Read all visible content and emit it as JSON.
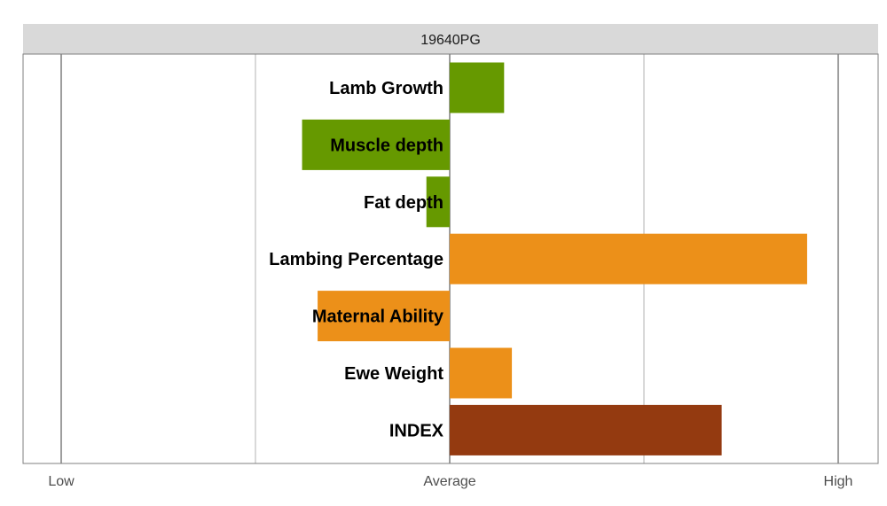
{
  "chart_data": {
    "type": "bar",
    "orientation": "horizontal",
    "title": "19640PG",
    "xlabel": "",
    "ylabel": "",
    "xlim": [
      -1,
      1
    ],
    "x_ticks": [
      {
        "value": -1,
        "label": "Low"
      },
      {
        "value": 0,
        "label": "Average"
      },
      {
        "value": 1,
        "label": "High"
      }
    ],
    "categories": [
      "Lamb Growth",
      "Muscle depth",
      "Fat depth",
      "Lambing Percentage",
      "Maternal Ability",
      "Ewe Weight",
      "INDEX"
    ],
    "values": [
      0.14,
      -0.38,
      -0.06,
      0.92,
      -0.34,
      0.16,
      0.7
    ],
    "colors": [
      "#669900",
      "#669900",
      "#669900",
      "#ec9019",
      "#ec9019",
      "#ec9019",
      "#943a10"
    ],
    "grid": true,
    "legend": "none"
  },
  "style": {
    "strip_background": "#d9d9d9",
    "grid_major": "#7f7f7f",
    "grid_minor": "#b3b3b3",
    "panel_border": "#7f7f7f"
  }
}
